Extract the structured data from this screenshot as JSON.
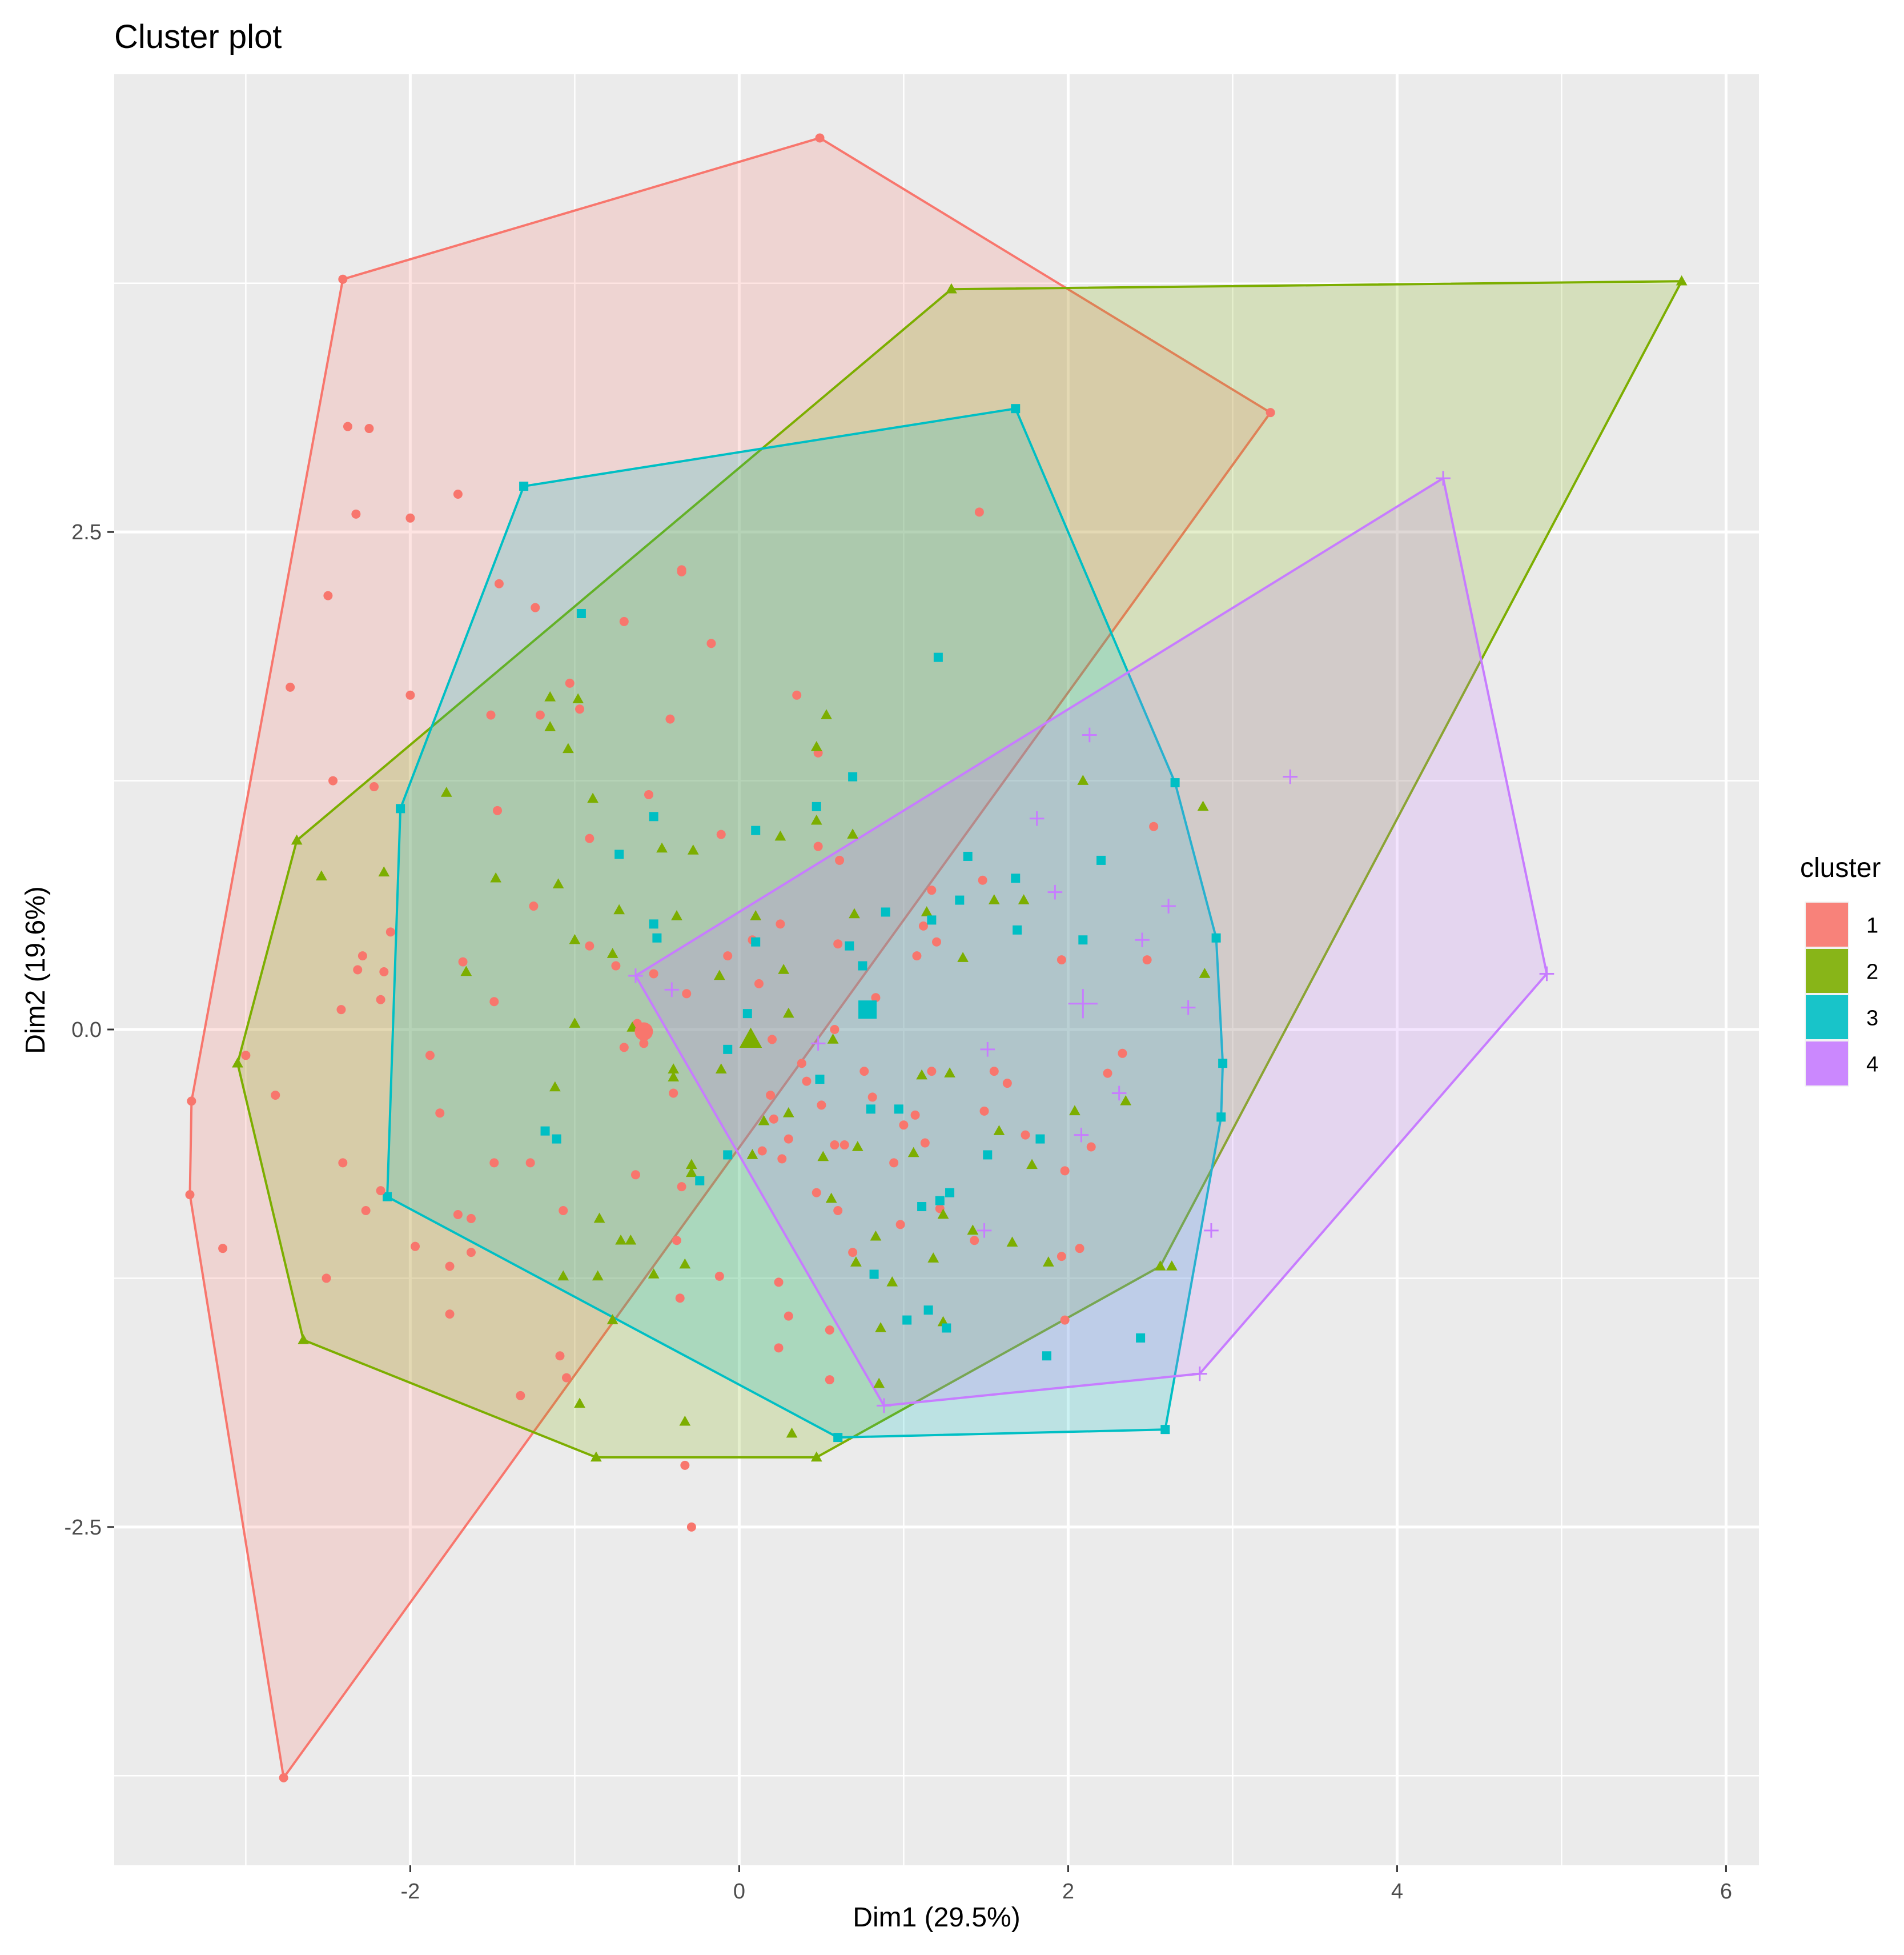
{
  "chart_data": {
    "type": "scatter",
    "title": "Cluster plot",
    "xlabel": "Dim1 (29.5%)",
    "ylabel": "Dim2 (19.6%)",
    "xlim": [
      -3.8,
      6.2
    ],
    "ylim": [
      -4.2,
      4.8
    ],
    "x_ticks": [
      -2,
      0,
      2,
      4,
      6
    ],
    "x_tick_labels": [
      "-2",
      "0",
      "2",
      "4",
      "6"
    ],
    "y_ticks": [
      -2.5,
      0,
      2.5
    ],
    "y_tick_labels": [
      "-2.5",
      "0.0",
      "2.5"
    ],
    "grid": true,
    "legend": {
      "title": "cluster",
      "position": "right"
    },
    "series": [
      {
        "name": "1",
        "color": "#F8766D",
        "shape": "circle",
        "center": [
          -0.58,
          -0.01
        ],
        "hull": [
          [
            0.49,
            4.48
          ],
          [
            -2.41,
            3.77
          ],
          [
            -3.33,
            -0.36
          ],
          [
            -3.34,
            -0.83
          ],
          [
            -2.77,
            -3.76
          ],
          [
            3.23,
            3.1
          ]
        ],
        "points": [
          [
            -2.38,
            3.03
          ],
          [
            -2.25,
            3.02
          ],
          [
            -2.33,
            2.59
          ],
          [
            -2.0,
            2.57
          ],
          [
            -1.71,
            2.69
          ],
          [
            -2.5,
            2.18
          ],
          [
            -2.73,
            1.72
          ],
          [
            -2.0,
            1.68
          ],
          [
            -2.47,
            1.25
          ],
          [
            -2.22,
            1.22
          ],
          [
            -2.12,
            0.49
          ],
          [
            -2.29,
            0.37
          ],
          [
            -2.16,
            0.29
          ],
          [
            -2.32,
            0.3
          ],
          [
            -2.18,
            0.15
          ],
          [
            -2.42,
            0.1
          ],
          [
            -3.0,
            -0.13
          ],
          [
            -2.82,
            -0.33
          ],
          [
            -3.14,
            -1.1
          ],
          [
            -2.41,
            -0.67
          ],
          [
            -2.18,
            -0.81
          ],
          [
            -2.27,
            -0.91
          ],
          [
            -2.51,
            -1.25
          ],
          [
            -1.97,
            -1.09
          ],
          [
            -1.76,
            -1.19
          ],
          [
            -1.63,
            -1.12
          ],
          [
            -1.76,
            -1.43
          ],
          [
            -1.33,
            -1.84
          ],
          [
            -1.09,
            -1.64
          ],
          [
            -1.05,
            -1.75
          ],
          [
            -0.33,
            -2.19
          ],
          [
            -0.29,
            -2.5
          ],
          [
            -1.71,
            -0.93
          ],
          [
            -1.63,
            -0.95
          ],
          [
            -1.88,
            -0.13
          ],
          [
            -1.82,
            -0.42
          ],
          [
            -1.49,
            -0.67
          ],
          [
            -1.27,
            -0.67
          ],
          [
            -1.07,
            -0.91
          ],
          [
            -1.25,
            0.62
          ],
          [
            -1.68,
            0.34
          ],
          [
            -1.49,
            0.14
          ],
          [
            -1.21,
            1.58
          ],
          [
            -1.03,
            1.74
          ],
          [
            -0.97,
            1.61
          ],
          [
            -0.91,
            0.96
          ],
          [
            -0.91,
            0.42
          ],
          [
            -1.51,
            1.58
          ],
          [
            -1.46,
            2.24
          ],
          [
            -1.24,
            2.12
          ],
          [
            -0.7,
            2.05
          ],
          [
            -0.35,
            2.3
          ],
          [
            -0.17,
            1.94
          ],
          [
            -0.42,
            1.56
          ],
          [
            -0.55,
            1.18
          ],
          [
            -0.52,
            0.28
          ],
          [
            -0.62,
            0.03
          ],
          [
            -0.58,
            -0.07
          ],
          [
            -0.4,
            -0.32
          ],
          [
            -0.63,
            -0.73
          ],
          [
            -0.35,
            -0.79
          ],
          [
            -0.38,
            -1.06
          ],
          [
            -0.36,
            -1.35
          ],
          [
            -0.12,
            -1.24
          ],
          [
            0.24,
            -1.27
          ],
          [
            0.3,
            -1.44
          ],
          [
            0.24,
            -1.6
          ],
          [
            0.55,
            -1.76
          ],
          [
            0.55,
            -1.51
          ],
          [
            0.69,
            -1.12
          ],
          [
            0.6,
            -0.91
          ],
          [
            0.47,
            -0.82
          ],
          [
            0.3,
            -0.55
          ],
          [
            0.19,
            -0.33
          ],
          [
            0.41,
            -0.26
          ],
          [
            0.21,
            -0.45
          ],
          [
            0.58,
            -0.58
          ],
          [
            0.81,
            -0.34
          ],
          [
            0.94,
            -0.67
          ],
          [
            0.98,
            -0.98
          ],
          [
            1.07,
            -0.43
          ],
          [
            1.17,
            -0.21
          ],
          [
            1.13,
            -0.57
          ],
          [
            1.22,
            -0.9
          ],
          [
            1.43,
            -1.06
          ],
          [
            1.49,
            -0.41
          ],
          [
            1.63,
            -0.27
          ],
          [
            1.74,
            -0.53
          ],
          [
            1.98,
            -0.71
          ],
          [
            1.96,
            -1.14
          ],
          [
            1.98,
            -1.46
          ],
          [
            2.07,
            -1.1
          ],
          [
            2.14,
            -0.59
          ],
          [
            2.24,
            -0.22
          ],
          [
            1.96,
            0.35
          ],
          [
            1.17,
            0.7
          ],
          [
            1.2,
            0.44
          ],
          [
            1.48,
            0.75
          ],
          [
            1.12,
            0.52
          ],
          [
            1.08,
            0.37
          ],
          [
            0.83,
            0.16
          ],
          [
            0.58,
            0.0
          ],
          [
            0.12,
            0.23
          ],
          [
            -0.07,
            0.37
          ],
          [
            0.08,
            0.45
          ],
          [
            0.61,
            0.85
          ],
          [
            0.6,
            0.43
          ],
          [
            0.25,
            0.53
          ],
          [
            0.48,
            0.92
          ],
          [
            -0.11,
            0.98
          ],
          [
            -0.35,
            2.31
          ],
          [
            0.35,
            1.68
          ],
          [
            0.48,
            1.39
          ],
          [
            0.2,
            -0.05
          ],
          [
            0.5,
            -0.38
          ],
          [
            0.64,
            -0.58
          ],
          [
            0.14,
            -0.61
          ],
          [
            0.76,
            -0.21
          ],
          [
            0.38,
            -0.17
          ],
          [
            1.0,
            -0.48
          ],
          [
            1.55,
            -0.21
          ],
          [
            1.46,
            2.6
          ],
          [
            2.52,
            1.02
          ],
          [
            2.33,
            -0.12
          ],
          [
            2.48,
            0.35
          ],
          [
            0.26,
            -0.65
          ],
          [
            -0.32,
            0.18
          ],
          [
            -1.47,
            1.1
          ],
          [
            -0.75,
            0.32
          ],
          [
            -0.7,
            -0.09
          ]
        ]
      },
      {
        "name": "2",
        "color": "#7CAE00",
        "shape": "triangle",
        "center": [
          0.07,
          -0.05
        ],
        "hull": [
          [
            1.29,
            3.72
          ],
          [
            5.73,
            3.76
          ],
          [
            2.56,
            -1.19
          ],
          [
            0.47,
            -2.15
          ],
          [
            -0.87,
            -2.15
          ],
          [
            -2.65,
            -1.56
          ],
          [
            -3.05,
            -0.17
          ],
          [
            -2.69,
            0.95
          ]
        ],
        "points": [
          [
            -2.54,
            0.77
          ],
          [
            -2.16,
            0.79
          ],
          [
            -1.78,
            1.19
          ],
          [
            -1.48,
            0.76
          ],
          [
            -1.66,
            0.29
          ],
          [
            -1.15,
            1.67
          ],
          [
            -1.15,
            1.52
          ],
          [
            -0.98,
            1.66
          ],
          [
            -1.04,
            1.41
          ],
          [
            -1.0,
            0.45
          ],
          [
            -1.1,
            0.73
          ],
          [
            -0.89,
            1.16
          ],
          [
            -0.77,
            0.38
          ],
          [
            -0.73,
            0.6
          ],
          [
            -0.47,
            0.91
          ],
          [
            -0.38,
            0.57
          ],
          [
            -0.28,
            0.9
          ],
          [
            -0.12,
            0.27
          ],
          [
            -0.11,
            -0.2
          ],
          [
            -0.4,
            -0.24
          ],
          [
            -0.65,
            0.01
          ],
          [
            -1.0,
            0.03
          ],
          [
            -1.12,
            -0.29
          ],
          [
            -0.72,
            -1.06
          ],
          [
            -0.66,
            -1.06
          ],
          [
            -0.52,
            -1.23
          ],
          [
            -0.33,
            -1.18
          ],
          [
            -0.29,
            -0.68
          ],
          [
            -0.77,
            -1.46
          ],
          [
            -0.86,
            -1.24
          ],
          [
            -1.07,
            -1.24
          ],
          [
            -0.97,
            -1.88
          ],
          [
            -0.33,
            -1.97
          ],
          [
            0.32,
            -2.03
          ],
          [
            0.3,
            -0.42
          ],
          [
            0.51,
            -0.64
          ],
          [
            0.56,
            -0.85
          ],
          [
            0.72,
            -0.59
          ],
          [
            0.83,
            -1.04
          ],
          [
            0.71,
            -1.17
          ],
          [
            1.18,
            -1.15
          ],
          [
            1.24,
            -0.93
          ],
          [
            1.06,
            -0.62
          ],
          [
            1.58,
            -0.51
          ],
          [
            1.78,
            -0.68
          ],
          [
            1.88,
            -1.17
          ],
          [
            1.66,
            -1.07
          ],
          [
            1.42,
            -1.01
          ],
          [
            0.93,
            -1.27
          ],
          [
            0.86,
            -1.5
          ],
          [
            1.24,
            -1.47
          ],
          [
            0.7,
            0.58
          ],
          [
            0.69,
            0.98
          ],
          [
            1.14,
            0.59
          ],
          [
            1.36,
            0.36
          ],
          [
            1.55,
            0.65
          ],
          [
            1.73,
            0.65
          ],
          [
            2.09,
            1.25
          ],
          [
            2.04,
            -0.41
          ],
          [
            2.35,
            -0.36
          ],
          [
            2.82,
            1.12
          ],
          [
            2.83,
            0.28
          ],
          [
            1.11,
            -0.23
          ],
          [
            1.28,
            -0.22
          ],
          [
            0.57,
            -0.05
          ],
          [
            0.3,
            0.08
          ],
          [
            0.27,
            0.3
          ],
          [
            0.1,
            0.57
          ],
          [
            0.53,
            1.58
          ],
          [
            0.47,
            1.42
          ],
          [
            0.25,
            0.97
          ],
          [
            0.47,
            1.05
          ],
          [
            0.15,
            -0.46
          ],
          [
            0.08,
            -0.63
          ],
          [
            -0.4,
            -0.2
          ],
          [
            -0.85,
            -0.95
          ],
          [
            2.63,
            -1.19
          ],
          [
            0.85,
            -1.78
          ],
          [
            -0.29,
            -0.72
          ]
        ]
      },
      {
        "name": "3",
        "color": "#00BFC4",
        "shape": "square",
        "center": [
          0.78,
          0.1
        ],
        "hull": [
          [
            -1.31,
            2.73
          ],
          [
            1.68,
            3.12
          ],
          [
            2.65,
            1.24
          ],
          [
            2.9,
            0.46
          ],
          [
            2.94,
            -0.17
          ],
          [
            2.93,
            -0.44
          ],
          [
            2.59,
            -2.01
          ],
          [
            0.6,
            -2.05
          ],
          [
            -2.14,
            -0.84
          ],
          [
            -2.06,
            1.11
          ]
        ],
        "points": [
          [
            -0.96,
            2.09
          ],
          [
            1.21,
            1.87
          ],
          [
            0.69,
            1.27
          ],
          [
            0.47,
            1.12
          ],
          [
            -0.52,
            1.07
          ],
          [
            -0.73,
            0.88
          ],
          [
            0.1,
            1.0
          ],
          [
            -0.52,
            0.53
          ],
          [
            -0.5,
            0.46
          ],
          [
            0.1,
            0.44
          ],
          [
            0.67,
            0.42
          ],
          [
            0.75,
            0.32
          ],
          [
            0.89,
            0.59
          ],
          [
            1.39,
            0.87
          ],
          [
            1.34,
            0.65
          ],
          [
            1.68,
            0.76
          ],
          [
            2.2,
            0.85
          ],
          [
            1.69,
            0.5
          ],
          [
            2.09,
            0.45
          ],
          [
            1.17,
            0.55
          ],
          [
            0.8,
            -0.4
          ],
          [
            0.97,
            -0.4
          ],
          [
            0.49,
            -0.25
          ],
          [
            1.22,
            -0.86
          ],
          [
            0.82,
            -1.23
          ],
          [
            1.02,
            -1.46
          ],
          [
            1.15,
            -1.41
          ],
          [
            1.26,
            -1.5
          ],
          [
            1.83,
            -0.55
          ],
          [
            1.51,
            -0.63
          ],
          [
            2.44,
            -1.55
          ],
          [
            1.87,
            -1.64
          ],
          [
            -0.07,
            -0.1
          ],
          [
            -0.07,
            -0.63
          ],
          [
            -0.24,
            -0.76
          ],
          [
            -1.11,
            -0.55
          ],
          [
            -1.18,
            -0.51
          ],
          [
            0.05,
            0.08
          ],
          [
            1.28,
            -0.82
          ],
          [
            1.11,
            -0.89
          ]
        ]
      },
      {
        "name": "4",
        "color": "#C77CFF",
        "shape": "plus",
        "center": [
          2.09,
          0.13
        ],
        "hull": [
          [
            -0.63,
            0.27
          ],
          [
            4.28,
            2.77
          ],
          [
            4.91,
            0.28
          ],
          [
            2.8,
            -1.73
          ],
          [
            0.88,
            -1.89
          ]
        ],
        "points": [
          [
            2.13,
            1.48
          ],
          [
            1.81,
            1.06
          ],
          [
            3.35,
            1.27
          ],
          [
            1.92,
            0.69
          ],
          [
            2.61,
            0.62
          ],
          [
            2.45,
            0.45
          ],
          [
            2.73,
            0.11
          ],
          [
            2.08,
            -0.53
          ],
          [
            2.31,
            -0.32
          ],
          [
            1.51,
            -0.1
          ],
          [
            1.49,
            -1.01
          ],
          [
            2.87,
            -1.01
          ],
          [
            0.48,
            -0.07
          ],
          [
            -0.41,
            0.2
          ]
        ]
      }
    ]
  }
}
